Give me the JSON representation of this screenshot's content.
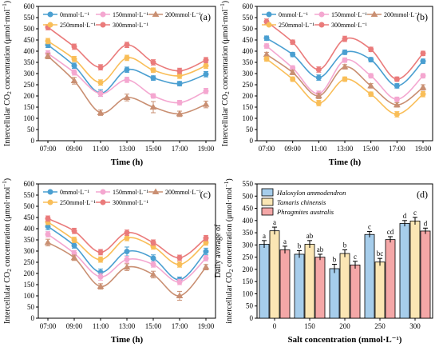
{
  "figure": {
    "time_xlabel": "Time (h)",
    "co2_ylabel_main": "Intercellular CO",
    "co2_ylabel_sub": "2",
    "co2_ylabel_rest": " concentration (μmol·mol",
    "co2_ylabel_sup": "−1",
    "co2_ylabel_close": ")"
  },
  "chart_data": [
    {
      "type": "line",
      "panel_label": "(a)",
      "x": [
        "07:00",
        "09:00",
        "11:00",
        "13:00",
        "15:00",
        "17:00",
        "19:00"
      ],
      "xlabel": "Time (h)",
      "ylabel": "Intercellular CO2 concentration (μmol·mol−1)",
      "ylim": [
        0,
        600
      ],
      "yticks": [
        0,
        50,
        100,
        150,
        200,
        250,
        300,
        350,
        400,
        450,
        500,
        550,
        600
      ],
      "legend_location": "top-left",
      "series": [
        {
          "name": "0mmol·L⁻¹",
          "color": "#4A9FD1",
          "marker": "circle",
          "values": [
            428,
            335,
            213,
            317,
            280,
            255,
            297
          ],
          "errors": [
            12,
            12,
            15,
            12,
            10,
            10,
            12
          ]
        },
        {
          "name": "150mmol·L⁻¹",
          "color": "#F4A7D0",
          "marker": "circle",
          "values": [
            390,
            305,
            210,
            272,
            200,
            170,
            222
          ],
          "errors": [
            12,
            12,
            12,
            12,
            10,
            10,
            12
          ]
        },
        {
          "name": "200mmol·L⁻¹",
          "color": "#C98F72",
          "marker": "triangle",
          "values": [
            378,
            268,
            125,
            193,
            150,
            120,
            162
          ],
          "errors": [
            12,
            15,
            12,
            15,
            25,
            12,
            15
          ]
        },
        {
          "name": "250mmol·L⁻¹",
          "color": "#F9BE58",
          "marker": "circle",
          "values": [
            445,
            365,
            260,
            370,
            315,
            290,
            335
          ],
          "errors": [
            12,
            12,
            12,
            12,
            10,
            12,
            12
          ]
        },
        {
          "name": "300mmol·L⁻¹",
          "color": "#EA7B7B",
          "marker": "circle",
          "values": [
            507,
            420,
            328,
            428,
            350,
            312,
            360
          ],
          "errors": [
            12,
            12,
            12,
            12,
            12,
            12,
            12
          ]
        }
      ]
    },
    {
      "type": "line",
      "panel_label": "(b)",
      "x": [
        "07:00",
        "09:00",
        "11:00",
        "13:00",
        "15:00",
        "17:00",
        "19:00"
      ],
      "xlabel": "Time (h)",
      "ylabel": "Intercellular CO2 concentration (μmol·mol−1)",
      "ylim": [
        0,
        600
      ],
      "yticks": [
        0,
        50,
        100,
        150,
        200,
        250,
        300,
        350,
        400,
        450,
        500,
        550,
        600
      ],
      "legend_location": "top-left",
      "series": [
        {
          "name": "0mmol·L⁻¹",
          "color": "#4A9FD1",
          "marker": "circle",
          "values": [
            458,
            385,
            282,
            395,
            362,
            245,
            355
          ],
          "errors": [
            10,
            10,
            12,
            10,
            10,
            10,
            10
          ]
        },
        {
          "name": "150mmol·L⁻¹",
          "color": "#F4A7D0",
          "marker": "circle",
          "values": [
            423,
            325,
            210,
            360,
            290,
            185,
            290
          ],
          "errors": [
            10,
            10,
            12,
            10,
            10,
            10,
            10
          ]
        },
        {
          "name": "200mmol·L⁻¹",
          "color": "#C98F72",
          "marker": "triangle",
          "values": [
            385,
            305,
            200,
            330,
            245,
            160,
            238
          ],
          "errors": [
            10,
            10,
            12,
            10,
            10,
            10,
            12
          ]
        },
        {
          "name": "250mmol·L⁻¹",
          "color": "#F9BE58",
          "marker": "circle",
          "values": [
            365,
            275,
            168,
            275,
            208,
            118,
            208
          ],
          "errors": [
            10,
            10,
            12,
            10,
            10,
            12,
            12
          ]
        },
        {
          "name": "300mmol·L⁻¹",
          "color": "#EA7B7B",
          "marker": "circle",
          "values": [
            532,
            440,
            318,
            455,
            408,
            275,
            390
          ],
          "errors": [
            12,
            10,
            12,
            12,
            10,
            10,
            10
          ]
        }
      ]
    },
    {
      "type": "line",
      "panel_label": "(c)",
      "x": [
        "07:00",
        "09:00",
        "11:00",
        "13:00",
        "15:00",
        "17:00",
        "19:00"
      ],
      "xlabel": "Time (h)",
      "ylabel": "Intercellular CO2 concentration (μmol·mol−1)",
      "ylim": [
        0,
        600
      ],
      "yticks": [
        0,
        50,
        100,
        150,
        200,
        250,
        300,
        350,
        400,
        450,
        500,
        550,
        600
      ],
      "legend_location": "top-left",
      "series": [
        {
          "name": "0mmol·L⁻¹",
          "color": "#4A9FD1",
          "marker": "circle",
          "values": [
            410,
            325,
            205,
            298,
            268,
            172,
            298
          ],
          "errors": [
            15,
            12,
            15,
            20,
            15,
            12,
            15
          ]
        },
        {
          "name": "150mmol·L⁻¹",
          "color": "#F4A7D0",
          "marker": "circle",
          "values": [
            375,
            290,
            185,
            262,
            240,
            162,
            268
          ],
          "errors": [
            12,
            12,
            15,
            15,
            12,
            12,
            12
          ]
        },
        {
          "name": "200mmol·L⁻¹",
          "color": "#C98F72",
          "marker": "triangle",
          "values": [
            338,
            270,
            142,
            228,
            195,
            100,
            228
          ],
          "errors": [
            15,
            12,
            12,
            15,
            15,
            20,
            12
          ]
        },
        {
          "name": "250mmol·L⁻¹",
          "color": "#F9BE58",
          "marker": "circle",
          "values": [
            430,
            350,
            262,
            358,
            320,
            240,
            338
          ],
          "errors": [
            12,
            12,
            12,
            12,
            12,
            12,
            12
          ]
        },
        {
          "name": "300mmol·L⁻¹",
          "color": "#EA7B7B",
          "marker": "circle",
          "values": [
            445,
            390,
            295,
            382,
            338,
            270,
            358
          ],
          "errors": [
            12,
            12,
            12,
            12,
            12,
            12,
            12
          ]
        }
      ]
    },
    {
      "type": "bar",
      "panel_label": "(d)",
      "categories": [
        "0",
        "150",
        "200",
        "250",
        "300"
      ],
      "xlabel": "Salt concentration (mmol·L⁻¹)",
      "ylabel_line1": "Daily average of",
      "ylabel_line2": "intercellular CO2 concentration (μmol·mol−1)",
      "ylim": [
        0,
        550
      ],
      "yticks": [
        0,
        50,
        100,
        150,
        200,
        250,
        300,
        350,
        400,
        450,
        500,
        550
      ],
      "legend_location": "top-left",
      "series": [
        {
          "name": "Haloxylon ammodendron",
          "color": "#A6CDEB",
          "values": [
            303,
            262,
            203,
            343,
            388
          ],
          "errors": [
            15,
            15,
            18,
            12,
            12
          ],
          "letters": [
            "a",
            "b",
            "b",
            "c",
            "d"
          ]
        },
        {
          "name": "Tamaris chinensis",
          "color": "#FBE6B4",
          "values": [
            358,
            303,
            265,
            230,
            398
          ],
          "errors": [
            15,
            15,
            15,
            15,
            15
          ],
          "letters": [
            "a",
            "ab",
            "b",
            "bc",
            "c"
          ]
        },
        {
          "name": "Phragmites australis",
          "color": "#F4A7A7",
          "values": [
            280,
            250,
            218,
            322,
            357
          ],
          "errors": [
            15,
            12,
            15,
            12,
            12
          ],
          "letters": [
            "a",
            "ab",
            "c",
            "cd",
            "d"
          ]
        }
      ]
    }
  ]
}
